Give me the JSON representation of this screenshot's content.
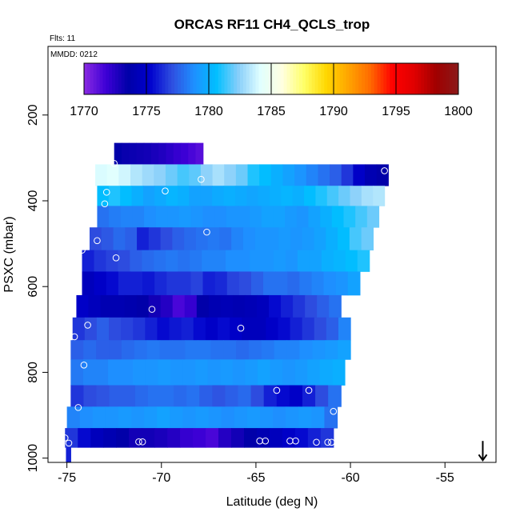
{
  "chart_data": {
    "type": "heatmap",
    "title": "ORCAS RF11 CH4_QCLS_trop",
    "subtitle_flights": "Flts: 11",
    "subtitle_date": "MMDD: 0212",
    "xlabel": "Latitude (deg N)",
    "ylabel": "PSXC (mbar)",
    "xlim": [
      -76,
      -52.3
    ],
    "ylim": [
      1010,
      40
    ],
    "y_reversed": true,
    "x_ticks": [
      -75,
      -70,
      -65,
      -60,
      -55
    ],
    "x_tick_labels": [
      "-75",
      "-70",
      "-65",
      "-60",
      "-55"
    ],
    "y_ticks": [
      200,
      400,
      600,
      800,
      1000
    ],
    "y_tick_labels": [
      "200",
      "400",
      "600",
      "800",
      "1000"
    ],
    "colorbar": {
      "min": 1770,
      "max": 1800,
      "ticks": [
        1770,
        1775,
        1780,
        1785,
        1790,
        1795,
        1800
      ],
      "tick_labels": [
        "1770",
        "1775",
        "1780",
        "1785",
        "1790",
        "1795",
        "1800"
      ],
      "colors": [
        "#8a2be2",
        "#3d00d6",
        "#0000a8",
        "#0000cd",
        "#2f4fe0",
        "#1e90ff",
        "#00bfff",
        "#87cefa",
        "#e0ffff",
        "#ffffe0",
        "#ffff66",
        "#ffd700",
        "#ffa500",
        "#ff6a00",
        "#ff0000",
        "#e00000",
        "#a00000",
        "#8b1a1a"
      ]
    },
    "bands": [
      {
        "p_top": 265,
        "p_bot": 315,
        "lat_start": -72.5,
        "lat_end": -67.8,
        "values": [
          1773.5,
          1773.3,
          1773.2,
          1773.1,
          1773.0,
          1772.8,
          1772.6,
          1772.3,
          1772.0,
          1771.8,
          1771.5,
          1771.2
        ]
      },
      {
        "p_top": 315,
        "p_bot": 365,
        "lat_start": -73.5,
        "lat_end": -58.0,
        "values": [
          1784.0,
          1784.2,
          1783.8,
          1783.2,
          1782.8,
          1782.5,
          1782.0,
          1781.5,
          1781.8,
          1782.5,
          1783.0,
          1782.5,
          1782.0,
          1781.0,
          1780.5,
          1780.0,
          1779.5,
          1779.0,
          1778.5,
          1778.0,
          1777.5,
          1776.5,
          1775.0,
          1774.0,
          1773.5
        ]
      },
      {
        "p_top": 365,
        "p_bot": 412,
        "lat_start": -73.4,
        "lat_end": -58.2,
        "values": [
          1780.5,
          1781.0,
          1780.5,
          1780.0,
          1779.5,
          1779.8,
          1780.2,
          1780.0,
          1779.5,
          1779.5,
          1779.8,
          1780.0,
          1779.8,
          1779.6,
          1779.8,
          1780.0,
          1780.2,
          1780.0,
          1780.5,
          1781.0,
          1781.5,
          1782.0,
          1782.5,
          1783.0,
          1783.2
        ]
      },
      {
        "p_top": 412,
        "p_bot": 462,
        "lat_start": -73.4,
        "lat_end": -58.5,
        "values": [
          1778.0,
          1778.3,
          1778.5,
          1778.5,
          1778.8,
          1779.0,
          1779.0,
          1779.2,
          1779.0,
          1778.8,
          1778.8,
          1779.0,
          1779.0,
          1779.2,
          1779.5,
          1779.5,
          1779.2,
          1779.0,
          1779.5,
          1780.0,
          1780.5,
          1781.0,
          1781.5,
          1782.0
        ]
      },
      {
        "p_top": 462,
        "p_bot": 515,
        "lat_start": -73.8,
        "lat_end": -58.8,
        "values": [
          1777.0,
          1777.3,
          1777.8,
          1777.5,
          1776.0,
          1776.5,
          1777.0,
          1777.5,
          1777.8,
          1778.0,
          1778.2,
          1778.0,
          1778.5,
          1778.8,
          1779.0,
          1779.0,
          1779.2,
          1779.0,
          1779.2,
          1779.5,
          1780.0,
          1780.5,
          1781.5,
          1782.0
        ]
      },
      {
        "p_top": 515,
        "p_bot": 565,
        "lat_start": -74.2,
        "lat_end": -59.0,
        "values": [
          1776.0,
          1776.5,
          1776.8,
          1777.0,
          1777.5,
          1777.8,
          1778.0,
          1778.2,
          1778.0,
          1778.2,
          1778.5,
          1778.5,
          1778.8,
          1778.8,
          1779.0,
          1779.0,
          1779.2,
          1779.0,
          1779.5,
          1779.5,
          1780.0,
          1780.2,
          1780.5,
          1781.0
        ]
      },
      {
        "p_top": 565,
        "p_bot": 620,
        "lat_start": -74.2,
        "lat_end": -59.5,
        "values": [
          1774.5,
          1775.0,
          1775.5,
          1776.0,
          1776.0,
          1775.8,
          1776.2,
          1776.5,
          1776.5,
          1776.8,
          1776.0,
          1776.2,
          1776.8,
          1777.0,
          1777.5,
          1778.0,
          1778.0,
          1777.8,
          1778.2,
          1778.5,
          1778.8,
          1779.0,
          1779.5
        ]
      },
      {
        "p_top": 620,
        "p_bot": 672,
        "lat_start": -74.5,
        "lat_end": -60.5,
        "values": [
          1775.0,
          1774.5,
          1774.0,
          1774.0,
          1773.8,
          1773.5,
          1773.0,
          1772.5,
          1771.5,
          1772.0,
          1773.5,
          1774.0,
          1774.2,
          1774.0,
          1774.2,
          1774.5,
          1775.5,
          1776.0,
          1776.5,
          1777.0,
          1777.5,
          1778.0
        ]
      },
      {
        "p_top": 672,
        "p_bot": 725,
        "lat_start": -74.7,
        "lat_end": -60.0,
        "values": [
          1776.5,
          1777.0,
          1777.5,
          1777.0,
          1776.8,
          1776.5,
          1776.0,
          1775.5,
          1775.8,
          1776.0,
          1775.5,
          1775.0,
          1775.5,
          1775.0,
          1774.5,
          1774.5,
          1775.0,
          1775.5,
          1776.0,
          1776.5,
          1777.0,
          1777.5,
          1778.5
        ]
      },
      {
        "p_top": 725,
        "p_bot": 770,
        "lat_start": -74.8,
        "lat_end": -60.0,
        "values": [
          1777.5,
          1777.8,
          1777.5,
          1777.5,
          1777.8,
          1778.0,
          1778.2,
          1778.0,
          1778.0,
          1778.2,
          1778.2,
          1778.0,
          1778.0,
          1777.8,
          1778.0,
          1778.2,
          1778.5,
          1778.5,
          1778.8,
          1779.0,
          1779.2,
          1779.5
        ]
      },
      {
        "p_top": 770,
        "p_bot": 830,
        "lat_start": -74.8,
        "lat_end": -60.3,
        "values": [
          1778.2,
          1778.5,
          1778.5,
          1778.8,
          1778.8,
          1779.0,
          1779.0,
          1779.2,
          1779.0,
          1779.0,
          1779.2,
          1779.0,
          1779.2,
          1779.0,
          1779.2,
          1779.5,
          1779.2,
          1779.0,
          1779.2,
          1779.5,
          1779.8,
          1780.0
        ]
      },
      {
        "p_top": 830,
        "p_bot": 880,
        "lat_start": -74.8,
        "lat_end": -60.5,
        "values": [
          1776.5,
          1777.0,
          1777.2,
          1777.5,
          1777.5,
          1777.8,
          1778.0,
          1778.0,
          1777.8,
          1778.0,
          1777.5,
          1777.2,
          1777.5,
          1777.8,
          1777.0,
          1776.0,
          1775.5,
          1775.0,
          1776.0,
          1777.0,
          1778.0
        ]
      },
      {
        "p_top": 880,
        "p_bot": 930,
        "lat_start": -75.0,
        "lat_end": -60.7,
        "values": [
          1778.5,
          1778.8,
          1779.0,
          1779.0,
          1779.2,
          1779.0,
          1779.2,
          1779.5,
          1779.2,
          1779.0,
          1779.2,
          1779.0,
          1778.8,
          1779.0,
          1779.2,
          1779.0,
          1778.8,
          1779.0,
          1779.2,
          1779.0,
          1778.0
        ]
      },
      {
        "p_top": 930,
        "p_bot": 975,
        "lat_start": -75.1,
        "lat_end": -60.9,
        "values": [
          1776.5,
          1775.5,
          1774.5,
          1774.0,
          1773.5,
          1773.0,
          1773.0,
          1772.8,
          1772.5,
          1772.0,
          1771.8,
          1771.5,
          1772.5,
          1773.0,
          1773.5,
          1774.0,
          1774.5,
          1775.0,
          1775.5,
          1776.0,
          1776.5
        ]
      },
      {
        "p_top": 975,
        "p_bot": 1010,
        "lat_start": -75.05,
        "lat_end": -74.8,
        "values": [
          1776.0
        ]
      }
    ],
    "markers": [
      {
        "lat": -72.5,
        "p": 313
      },
      {
        "lat": -58.2,
        "p": 330
      },
      {
        "lat": -67.9,
        "p": 350
      },
      {
        "lat": -69.8,
        "p": 377
      },
      {
        "lat": -72.9,
        "p": 380
      },
      {
        "lat": -73.0,
        "p": 407
      },
      {
        "lat": -67.6,
        "p": 473
      },
      {
        "lat": -73.4,
        "p": 493
      },
      {
        "lat": -74.2,
        "p": 515
      },
      {
        "lat": -72.4,
        "p": 533
      },
      {
        "lat": -70.5,
        "p": 653
      },
      {
        "lat": -73.9,
        "p": 690
      },
      {
        "lat": -65.8,
        "p": 697
      },
      {
        "lat": -74.6,
        "p": 717
      },
      {
        "lat": -74.1,
        "p": 783
      },
      {
        "lat": -63.9,
        "p": 842
      },
      {
        "lat": -62.2,
        "p": 842
      },
      {
        "lat": -74.4,
        "p": 882
      },
      {
        "lat": -60.9,
        "p": 891
      },
      {
        "lat": -75.1,
        "p": 953
      },
      {
        "lat": -74.9,
        "p": 965
      },
      {
        "lat": -71.2,
        "p": 962
      },
      {
        "lat": -71.0,
        "p": 962
      },
      {
        "lat": -64.8,
        "p": 960
      },
      {
        "lat": -64.5,
        "p": 960
      },
      {
        "lat": -63.2,
        "p": 960
      },
      {
        "lat": -62.9,
        "p": 960
      },
      {
        "lat": -61.8,
        "p": 963
      },
      {
        "lat": -61.2,
        "p": 963
      },
      {
        "lat": -61.0,
        "p": 963
      }
    ],
    "arrow": {
      "lat": -53.0,
      "p_top": 960,
      "p_bot": 1005
    },
    "grid": false,
    "legend": "colorbar-top"
  }
}
